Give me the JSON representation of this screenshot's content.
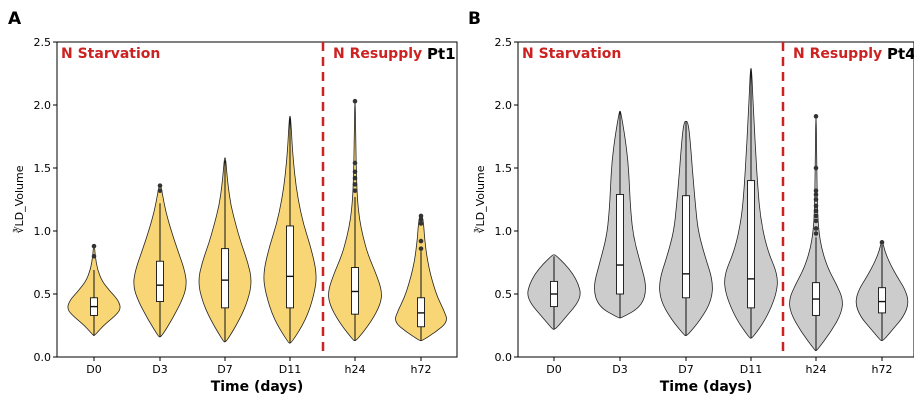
{
  "chart_data": [
    {
      "type": "violin",
      "panel": "A",
      "patient": "Pt1",
      "fill": "#f9d675",
      "xlabel": "Time (days)",
      "ylabel": "∛LD_Volume",
      "ylim": [
        0,
        2.5
      ],
      "yticks": [
        "0.0",
        "0.5",
        "1.0",
        "1.5",
        "2.0",
        "2.5"
      ],
      "phase_left": "N Starvation",
      "phase_right": "N Resupply",
      "phase_color": "#cc2222",
      "categories": [
        "D0",
        "D3",
        "D7",
        "D11",
        "h24",
        "h72"
      ],
      "series": [
        {
          "category": "D0",
          "min": 0.17,
          "max": 0.88,
          "q1": 0.33,
          "median": 0.4,
          "q3": 0.47,
          "whisker_low": 0.17,
          "whisker_high": 0.69,
          "outliers": [
            0.8,
            0.88
          ],
          "density": [
            [
              0.17,
              0.02
            ],
            [
              0.25,
              0.35
            ],
            [
              0.32,
              0.75
            ],
            [
              0.38,
              1.0
            ],
            [
              0.45,
              0.9
            ],
            [
              0.52,
              0.6
            ],
            [
              0.6,
              0.3
            ],
            [
              0.7,
              0.12
            ],
            [
              0.8,
              0.05
            ],
            [
              0.88,
              0.02
            ]
          ]
        },
        {
          "category": "D3",
          "min": 0.16,
          "max": 1.36,
          "q1": 0.44,
          "median": 0.57,
          "q3": 0.76,
          "whisker_low": 0.16,
          "whisker_high": 1.22,
          "outliers": [
            1.32,
            1.36
          ],
          "density": [
            [
              0.16,
              0.05
            ],
            [
              0.3,
              0.45
            ],
            [
              0.45,
              0.82
            ],
            [
              0.57,
              1.0
            ],
            [
              0.7,
              0.9
            ],
            [
              0.85,
              0.65
            ],
            [
              1.0,
              0.42
            ],
            [
              1.15,
              0.22
            ],
            [
              1.28,
              0.1
            ],
            [
              1.36,
              0.03
            ]
          ]
        },
        {
          "category": "D7",
          "min": 0.12,
          "max": 1.58,
          "q1": 0.39,
          "median": 0.61,
          "q3": 0.86,
          "whisker_low": 0.12,
          "whisker_high": 1.56,
          "outliers": [],
          "density": [
            [
              0.12,
              0.05
            ],
            [
              0.3,
              0.55
            ],
            [
              0.45,
              0.85
            ],
            [
              0.6,
              1.0
            ],
            [
              0.75,
              0.85
            ],
            [
              0.9,
              0.6
            ],
            [
              1.05,
              0.4
            ],
            [
              1.2,
              0.22
            ],
            [
              1.35,
              0.12
            ],
            [
              1.48,
              0.06
            ],
            [
              1.58,
              0.02
            ]
          ]
        },
        {
          "category": "D11",
          "min": 0.11,
          "max": 1.91,
          "q1": 0.39,
          "median": 0.64,
          "q3": 1.04,
          "whisker_low": 0.11,
          "whisker_high": 1.9,
          "outliers": [],
          "density": [
            [
              0.11,
              0.05
            ],
            [
              0.3,
              0.6
            ],
            [
              0.5,
              0.9
            ],
            [
              0.65,
              1.0
            ],
            [
              0.85,
              0.8
            ],
            [
              1.05,
              0.5
            ],
            [
              1.25,
              0.3
            ],
            [
              1.45,
              0.17
            ],
            [
              1.65,
              0.09
            ],
            [
              1.8,
              0.05
            ],
            [
              1.91,
              0.02
            ]
          ]
        },
        {
          "category": "h24",
          "min": 0.13,
          "max": 2.03,
          "q1": 0.34,
          "median": 0.52,
          "q3": 0.71,
          "whisker_low": 0.13,
          "whisker_high": 1.27,
          "outliers": [
            1.32,
            1.37,
            1.42,
            1.47,
            1.54,
            2.03
          ],
          "density": [
            [
              0.13,
              0.05
            ],
            [
              0.28,
              0.6
            ],
            [
              0.42,
              0.95
            ],
            [
              0.52,
              1.0
            ],
            [
              0.65,
              0.8
            ],
            [
              0.8,
              0.5
            ],
            [
              0.95,
              0.3
            ],
            [
              1.1,
              0.16
            ],
            [
              1.25,
              0.09
            ],
            [
              1.45,
              0.05
            ],
            [
              1.7,
              0.03
            ],
            [
              2.03,
              0.01
            ]
          ]
        },
        {
          "category": "h72",
          "min": 0.13,
          "max": 1.12,
          "q1": 0.24,
          "median": 0.35,
          "q3": 0.47,
          "whisker_low": 0.13,
          "whisker_high": 0.84,
          "outliers": [
            0.86,
            0.92,
            1.06,
            1.09,
            1.12
          ],
          "density": [
            [
              0.13,
              0.05
            ],
            [
              0.2,
              0.55
            ],
            [
              0.28,
              1.0
            ],
            [
              0.37,
              0.85
            ],
            [
              0.47,
              0.62
            ],
            [
              0.58,
              0.45
            ],
            [
              0.7,
              0.3
            ],
            [
              0.82,
              0.2
            ],
            [
              0.95,
              0.13
            ],
            [
              1.05,
              0.1
            ],
            [
              1.12,
              0.05
            ]
          ]
        }
      ]
    },
    {
      "type": "violin",
      "panel": "B",
      "patient": "Pt4",
      "fill": "#cccccc",
      "xlabel": "Time (days)",
      "ylabel": "∛LD_Volume",
      "ylim": [
        0,
        2.5
      ],
      "yticks": [
        "0.0",
        "0.5",
        "1.0",
        "1.5",
        "2.0",
        "2.5"
      ],
      "phase_left": "N Starvation",
      "phase_right": "N Resupply",
      "phase_color": "#cc2222",
      "categories": [
        "D0",
        "D3",
        "D7",
        "D11",
        "h24",
        "h72"
      ],
      "series": [
        {
          "category": "D0",
          "min": 0.22,
          "max": 0.81,
          "q1": 0.4,
          "median": 0.5,
          "q3": 0.6,
          "whisker_low": 0.22,
          "whisker_high": 0.8,
          "outliers": [],
          "density": [
            [
              0.22,
              0.05
            ],
            [
              0.32,
              0.45
            ],
            [
              0.42,
              0.85
            ],
            [
              0.5,
              1.0
            ],
            [
              0.58,
              0.9
            ],
            [
              0.66,
              0.7
            ],
            [
              0.74,
              0.4
            ],
            [
              0.81,
              0.05
            ]
          ]
        },
        {
          "category": "D3",
          "min": 0.31,
          "max": 1.95,
          "q1": 0.5,
          "median": 0.73,
          "q3": 1.29,
          "whisker_low": 0.31,
          "whisker_high": 1.95,
          "outliers": [],
          "density": [
            [
              0.31,
              0.05
            ],
            [
              0.4,
              0.8
            ],
            [
              0.55,
              1.0
            ],
            [
              0.75,
              0.75
            ],
            [
              0.95,
              0.5
            ],
            [
              1.15,
              0.4
            ],
            [
              1.35,
              0.35
            ],
            [
              1.55,
              0.3
            ],
            [
              1.75,
              0.18
            ],
            [
              1.88,
              0.08
            ],
            [
              1.95,
              0.02
            ]
          ]
        },
        {
          "category": "D7",
          "min": 0.17,
          "max": 1.87,
          "q1": 0.47,
          "median": 0.66,
          "q3": 1.28,
          "whisker_low": 0.17,
          "whisker_high": 1.87,
          "outliers": [],
          "density": [
            [
              0.17,
              0.05
            ],
            [
              0.3,
              0.55
            ],
            [
              0.45,
              0.95
            ],
            [
              0.6,
              1.0
            ],
            [
              0.8,
              0.7
            ],
            [
              1.0,
              0.45
            ],
            [
              1.2,
              0.35
            ],
            [
              1.4,
              0.27
            ],
            [
              1.6,
              0.2
            ],
            [
              1.8,
              0.12
            ],
            [
              1.87,
              0.05
            ]
          ]
        },
        {
          "category": "D11",
          "min": 0.15,
          "max": 2.29,
          "q1": 0.39,
          "median": 0.62,
          "q3": 1.4,
          "whisker_low": 0.15,
          "whisker_high": 2.29,
          "outliers": [],
          "density": [
            [
              0.15,
              0.05
            ],
            [
              0.3,
              0.55
            ],
            [
              0.5,
              0.95
            ],
            [
              0.65,
              1.0
            ],
            [
              0.85,
              0.6
            ],
            [
              1.1,
              0.35
            ],
            [
              1.35,
              0.25
            ],
            [
              1.6,
              0.18
            ],
            [
              1.85,
              0.12
            ],
            [
              2.1,
              0.06
            ],
            [
              2.29,
              0.02
            ]
          ]
        },
        {
          "category": "h24",
          "min": 0.05,
          "max": 1.91,
          "q1": 0.33,
          "median": 0.46,
          "q3": 0.59,
          "whisker_low": 0.05,
          "whisker_high": 0.95,
          "outliers": [
            0.98,
            1.02,
            1.08,
            1.12,
            1.16,
            1.2,
            1.25,
            1.29,
            1.32,
            1.5,
            1.91
          ],
          "density": [
            [
              0.05,
              0.03
            ],
            [
              0.2,
              0.55
            ],
            [
              0.35,
              0.95
            ],
            [
              0.46,
              1.0
            ],
            [
              0.58,
              0.75
            ],
            [
              0.7,
              0.45
            ],
            [
              0.85,
              0.22
            ],
            [
              1.0,
              0.1
            ],
            [
              1.2,
              0.05
            ],
            [
              1.5,
              0.03
            ],
            [
              1.91,
              0.01
            ]
          ]
        },
        {
          "category": "h72",
          "min": 0.13,
          "max": 0.91,
          "q1": 0.35,
          "median": 0.44,
          "q3": 0.55,
          "whisker_low": 0.13,
          "whisker_high": 0.89,
          "outliers": [
            0.91
          ],
          "density": [
            [
              0.13,
              0.05
            ],
            [
              0.22,
              0.4
            ],
            [
              0.32,
              0.8
            ],
            [
              0.43,
              1.0
            ],
            [
              0.54,
              0.85
            ],
            [
              0.64,
              0.55
            ],
            [
              0.74,
              0.3
            ],
            [
              0.83,
              0.12
            ],
            [
              0.91,
              0.03
            ]
          ]
        }
      ]
    }
  ]
}
